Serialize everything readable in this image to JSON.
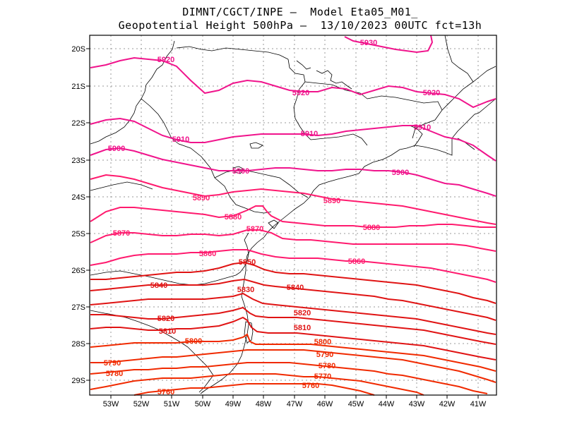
{
  "header": {
    "line1": "DIMNT/CGCT/INPE –  Model Eta05_M01_",
    "line2": "Geopotential Height 500hPa –  13/10/2023 00UTC fct=13h"
  },
  "axes": {
    "lat_labels": [
      "20S",
      "21S",
      "22S",
      "23S",
      "24S",
      "25S",
      "26S",
      "27S",
      "28S",
      "29S"
    ],
    "lon_labels": [
      "53W",
      "52W",
      "51W",
      "50W",
      "49W",
      "48W",
      "47W",
      "46W",
      "45W",
      "44W",
      "43W",
      "42W",
      "41W"
    ]
  },
  "colors": {
    "magenta": "#f0148c",
    "pink": "#ff1a6e",
    "red": "#e01414",
    "redorange": "#f02a00",
    "coast": "#000000",
    "grid": "#9a9a9a"
  },
  "contours": [
    {
      "value": "5930",
      "label": "5930"
    },
    {
      "value": "5920",
      "label": "5920"
    },
    {
      "value": "5910",
      "label": "5910"
    },
    {
      "value": "5900",
      "label": "5900"
    },
    {
      "value": "5890",
      "label": "5890"
    },
    {
      "value": "5880",
      "label": "5880"
    },
    {
      "value": "5870",
      "label": "5870"
    },
    {
      "value": "5860",
      "label": "5860"
    },
    {
      "value": "5850",
      "label": "5850"
    },
    {
      "value": "5840",
      "label": "5840"
    },
    {
      "value": "5830",
      "label": "5830"
    },
    {
      "value": "5820",
      "label": "5820"
    },
    {
      "value": "5810",
      "label": "5810"
    },
    {
      "value": "5800",
      "label": "5800"
    },
    {
      "value": "5790",
      "label": "5790"
    },
    {
      "value": "5780",
      "label": "5780"
    },
    {
      "value": "5770",
      "label": "5770"
    },
    {
      "value": "5760",
      "label": "5760"
    }
  ]
}
